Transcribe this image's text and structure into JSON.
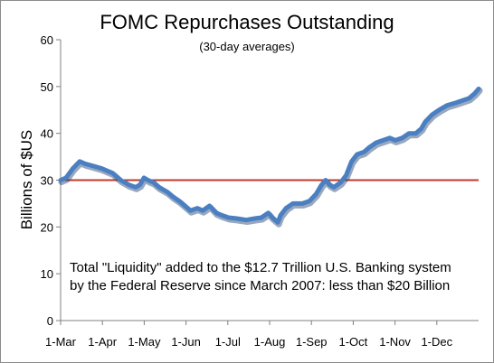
{
  "chart_data": {
    "type": "line",
    "title": "FOMC Repurchases Outstanding",
    "subtitle": "(30-day averages)",
    "ylabel": "Billions of $US",
    "xlabel": "",
    "ylim": [
      0,
      60
    ],
    "yticks": [
      0,
      10,
      20,
      30,
      40,
      50,
      60
    ],
    "xticks": [
      "1-Mar",
      "1-Apr",
      "1-May",
      "1-Jun",
      "1-Jul",
      "1-Aug",
      "1-Sep",
      "1-Oct",
      "1-Nov",
      "1-Dec"
    ],
    "x_range_days": [
      0,
      306
    ],
    "grid": false,
    "annotation_lines": [
      "Total \"Liquidity\" added to the $12.7 Trillion U.S. Banking system",
      "by the Federal Reserve since March 2007: less than $20 Billion"
    ],
    "reference_line": {
      "value": 30,
      "color": "#c0392b"
    },
    "series": [
      {
        "color": "#4a7fc1",
        "points": [
          [
            0,
            30.0
          ],
          [
            4,
            30.5
          ],
          [
            9,
            32.5
          ],
          [
            14,
            34.0
          ],
          [
            18,
            33.5
          ],
          [
            24,
            33.0
          ],
          [
            30,
            32.5
          ],
          [
            38,
            31.5
          ],
          [
            44,
            30.0
          ],
          [
            50,
            29.0
          ],
          [
            55,
            28.5
          ],
          [
            58,
            29.0
          ],
          [
            61,
            30.5
          ],
          [
            64,
            30.0
          ],
          [
            68,
            29.5
          ],
          [
            72,
            28.5
          ],
          [
            78,
            27.5
          ],
          [
            82,
            26.5
          ],
          [
            87,
            25.5
          ],
          [
            91,
            24.5
          ],
          [
            95,
            23.5
          ],
          [
            100,
            24.0
          ],
          [
            104,
            23.5
          ],
          [
            109,
            24.5
          ],
          [
            114,
            23.0
          ],
          [
            118,
            22.5
          ],
          [
            123,
            22.0
          ],
          [
            129,
            21.8
          ],
          [
            136,
            21.5
          ],
          [
            142,
            21.8
          ],
          [
            147,
            22.0
          ],
          [
            152,
            23.0
          ],
          [
            155,
            22.0
          ],
          [
            159,
            21.0
          ],
          [
            161,
            22.5
          ],
          [
            165,
            24.0
          ],
          [
            170,
            25.0
          ],
          [
            177,
            25.0
          ],
          [
            182,
            25.5
          ],
          [
            187,
            27.0
          ],
          [
            191,
            29.0
          ],
          [
            194,
            30.0
          ],
          [
            197,
            29.0
          ],
          [
            200,
            28.5
          ],
          [
            205,
            29.5
          ],
          [
            209,
            31.0
          ],
          [
            213,
            34.0
          ],
          [
            217,
            35.5
          ],
          [
            222,
            36.0
          ],
          [
            226,
            37.0
          ],
          [
            231,
            38.0
          ],
          [
            236,
            38.5
          ],
          [
            241,
            39.0
          ],
          [
            245,
            38.5
          ],
          [
            250,
            39.0
          ],
          [
            255,
            40.0
          ],
          [
            260,
            40.0
          ],
          [
            264,
            41.0
          ],
          [
            267,
            42.5
          ],
          [
            272,
            44.0
          ],
          [
            277,
            45.0
          ],
          [
            283,
            46.0
          ],
          [
            289,
            46.5
          ],
          [
            294,
            47.0
          ],
          [
            299,
            47.5
          ],
          [
            303,
            48.5
          ],
          [
            306,
            49.5
          ]
        ]
      }
    ]
  }
}
